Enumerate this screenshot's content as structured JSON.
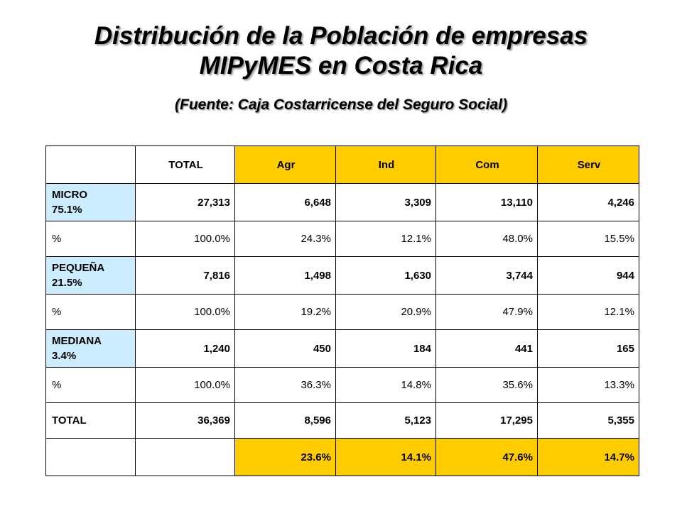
{
  "title_line1": "Distribución de la Población de empresas",
  "title_line2": "MIPyMES en Costa Rica",
  "subtitle": "(Fuente: Caja Costarricense del Seguro Social)",
  "header": {
    "empty": "",
    "total": "TOTAL",
    "agr": "Agr",
    "ind": "Ind",
    "com": "Com",
    "serv": "Serv"
  },
  "rows": [
    {
      "label_line1": "MICRO",
      "label_line2": "75.1%",
      "total": "27,313",
      "agr": "6,648",
      "ind": "3,309",
      "com": "13,110",
      "serv": "4,246"
    },
    {
      "label": "%",
      "total": "100.0%",
      "agr": "24.3%",
      "ind": "12.1%",
      "com": "48.0%",
      "serv": "15.5%"
    },
    {
      "label_line1": "PEQUEÑA",
      "label_line2": "21.5%",
      "total": "7,816",
      "agr": "1,498",
      "ind": "1,630",
      "com": "3,744",
      "serv": "944"
    },
    {
      "label": "%",
      "total": "100.0%",
      "agr": "19.2%",
      "ind": "20.9%",
      "com": "47.9%",
      "serv": "12.1%"
    },
    {
      "label_line1": "MEDIANA",
      "label_line2": "3.4%",
      "total": "1,240",
      "agr": "450",
      "ind": "184",
      "com": "441",
      "serv": "165"
    },
    {
      "label": "%",
      "total": "100.0%",
      "agr": "36.3%",
      "ind": "14.8%",
      "com": "35.6%",
      "serv": "13.3%"
    },
    {
      "label": "TOTAL",
      "total": "36,369",
      "agr": "8,596",
      "ind": "5,123",
      "com": "17,295",
      "serv": "5,355"
    },
    {
      "label": "",
      "total": "",
      "agr": "23.6%",
      "ind": "14.1%",
      "com": "47.6%",
      "serv": "14.7%"
    }
  ],
  "colors": {
    "header_yellow": "#ffcc00",
    "category_blue": "#ccecff"
  }
}
